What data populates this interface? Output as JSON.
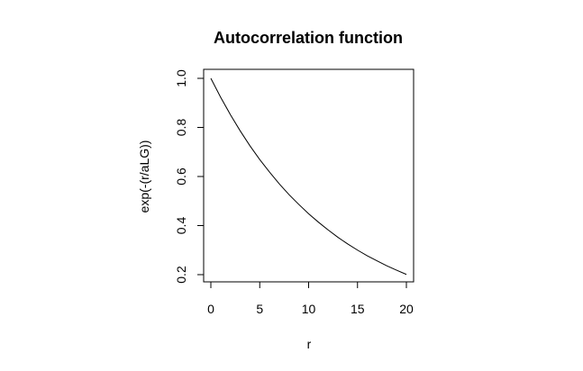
{
  "chart_data": {
    "type": "line",
    "title": "Autocorrelation function",
    "xlabel": "r",
    "ylabel": "exp(-(r/aLG))",
    "xlim": [
      0,
      20
    ],
    "ylim": [
      0.2,
      1.0
    ],
    "x_ticks": [
      "0",
      "5",
      "10",
      "15",
      "20"
    ],
    "y_ticks": [
      "0.2",
      "0.4",
      "0.6",
      "0.8",
      "1.0"
    ],
    "grid": false,
    "series": [
      {
        "x": [
          0,
          1,
          2,
          3,
          4,
          5,
          6,
          7,
          8,
          9,
          10,
          11,
          12,
          13,
          14,
          15,
          16,
          17,
          18,
          19,
          20
        ],
        "y": [
          1.0,
          0.923,
          0.852,
          0.786,
          0.725,
          0.669,
          0.618,
          0.57,
          0.526,
          0.486,
          0.448,
          0.414,
          0.382,
          0.352,
          0.325,
          0.3,
          0.277,
          0.256,
          0.236,
          0.218,
          0.201
        ],
        "color": "#000000"
      }
    ]
  }
}
